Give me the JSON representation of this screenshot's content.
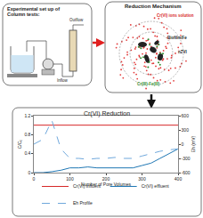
{
  "setup": {
    "title": "Experimental set up of Column tests:",
    "inflow": "Inflow",
    "outflow": "Outflow"
  },
  "mechanism": {
    "title": "Reduction Mechanism",
    "labels": [
      {
        "text": "Cr(VI) ions solution",
        "color": "#d62728"
      },
      {
        "text": "Biofilm/Fe",
        "color": "#222222"
      },
      {
        "text": "nZVI",
        "color": "#222222"
      },
      {
        "text": "Cr(III)-Fe(III)",
        "color": "#2e8b2e"
      }
    ]
  },
  "chart_data": {
    "type": "line",
    "title": "Cr(VI) Reduction",
    "x_label": "Number of Pore Volumes",
    "y_label": "C/C₀",
    "y2_label": "Eh (mV)",
    "x": [
      0,
      25,
      50,
      75,
      100,
      125,
      150,
      175,
      200,
      225,
      250,
      275,
      300,
      325,
      350,
      375,
      400
    ],
    "xlim": [
      0,
      400
    ],
    "xticks": [
      0,
      100,
      200,
      300,
      400
    ],
    "ylim": [
      0,
      1.2
    ],
    "yticks": [
      0,
      0.4,
      0.8,
      1.2
    ],
    "y2lim": [
      -600,
      600
    ],
    "y2ticks": [
      -600,
      -300,
      0,
      300,
      600
    ],
    "grid": false,
    "legend": "bottom",
    "series": [
      {
        "name": "Cr(VI) influent",
        "color": "#d62728",
        "line_style": "solid",
        "values": [
          1,
          1,
          1,
          1,
          1,
          1,
          1,
          1,
          1,
          1,
          1,
          1,
          1,
          1,
          1,
          1,
          1
        ]
      },
      {
        "name": "Cr(VI) effluent",
        "color": "#1f77b4",
        "line_style": "solid",
        "values": [
          0,
          0,
          0.02,
          0.05,
          0.1,
          0.1,
          0.12,
          0.1,
          0.1,
          0.1,
          0.1,
          0.1,
          0.15,
          0.2,
          0.3,
          0.4,
          0.5
        ]
      },
      {
        "name": "Eh Profile",
        "color": "#6fa8dc",
        "line_style": "dash",
        "axis": "y2",
        "values": [
          0,
          100,
          500,
          -100,
          -300,
          -300,
          -320,
          -300,
          -300,
          -280,
          -300,
          -300,
          -250,
          -200,
          -150,
          -120,
          -100
        ]
      }
    ]
  }
}
